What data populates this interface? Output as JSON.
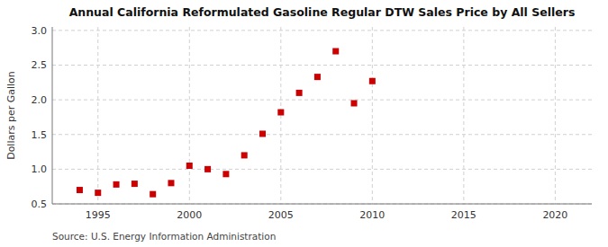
{
  "chart_data": {
    "type": "scatter",
    "title": "Annual California Reformulated Gasoline Regular DTW Sales Price by All Sellers",
    "y_label": "Dollars per Gallon",
    "annotations": [
      "Source: U.S. Energy Information Administration"
    ],
    "x": [
      1994,
      1995,
      1996,
      1997,
      1998,
      1999,
      2000,
      2001,
      2002,
      2003,
      2004,
      2005,
      2006,
      2007,
      2008,
      2009,
      2010
    ],
    "values": [
      0.7,
      0.66,
      0.78,
      0.79,
      0.64,
      0.8,
      1.05,
      1.0,
      0.93,
      1.2,
      1.51,
      1.82,
      2.1,
      2.33,
      2.7,
      1.95,
      2.27
    ],
    "color": "#cc0000",
    "marker": "square",
    "grid": true,
    "xlim": [
      1992.5,
      2022
    ],
    "ylim": [
      0.5,
      3.05
    ],
    "xticks": [
      1995,
      2000,
      2005,
      2010,
      2015,
      2020
    ],
    "yticks": [
      0.5,
      {
        "value": 1.0,
        "label": "1.0"
      },
      1.5,
      {
        "value": 2.0,
        "label": "2.0"
      },
      2.5,
      {
        "value": 3.0,
        "label": "3.0"
      }
    ]
  }
}
